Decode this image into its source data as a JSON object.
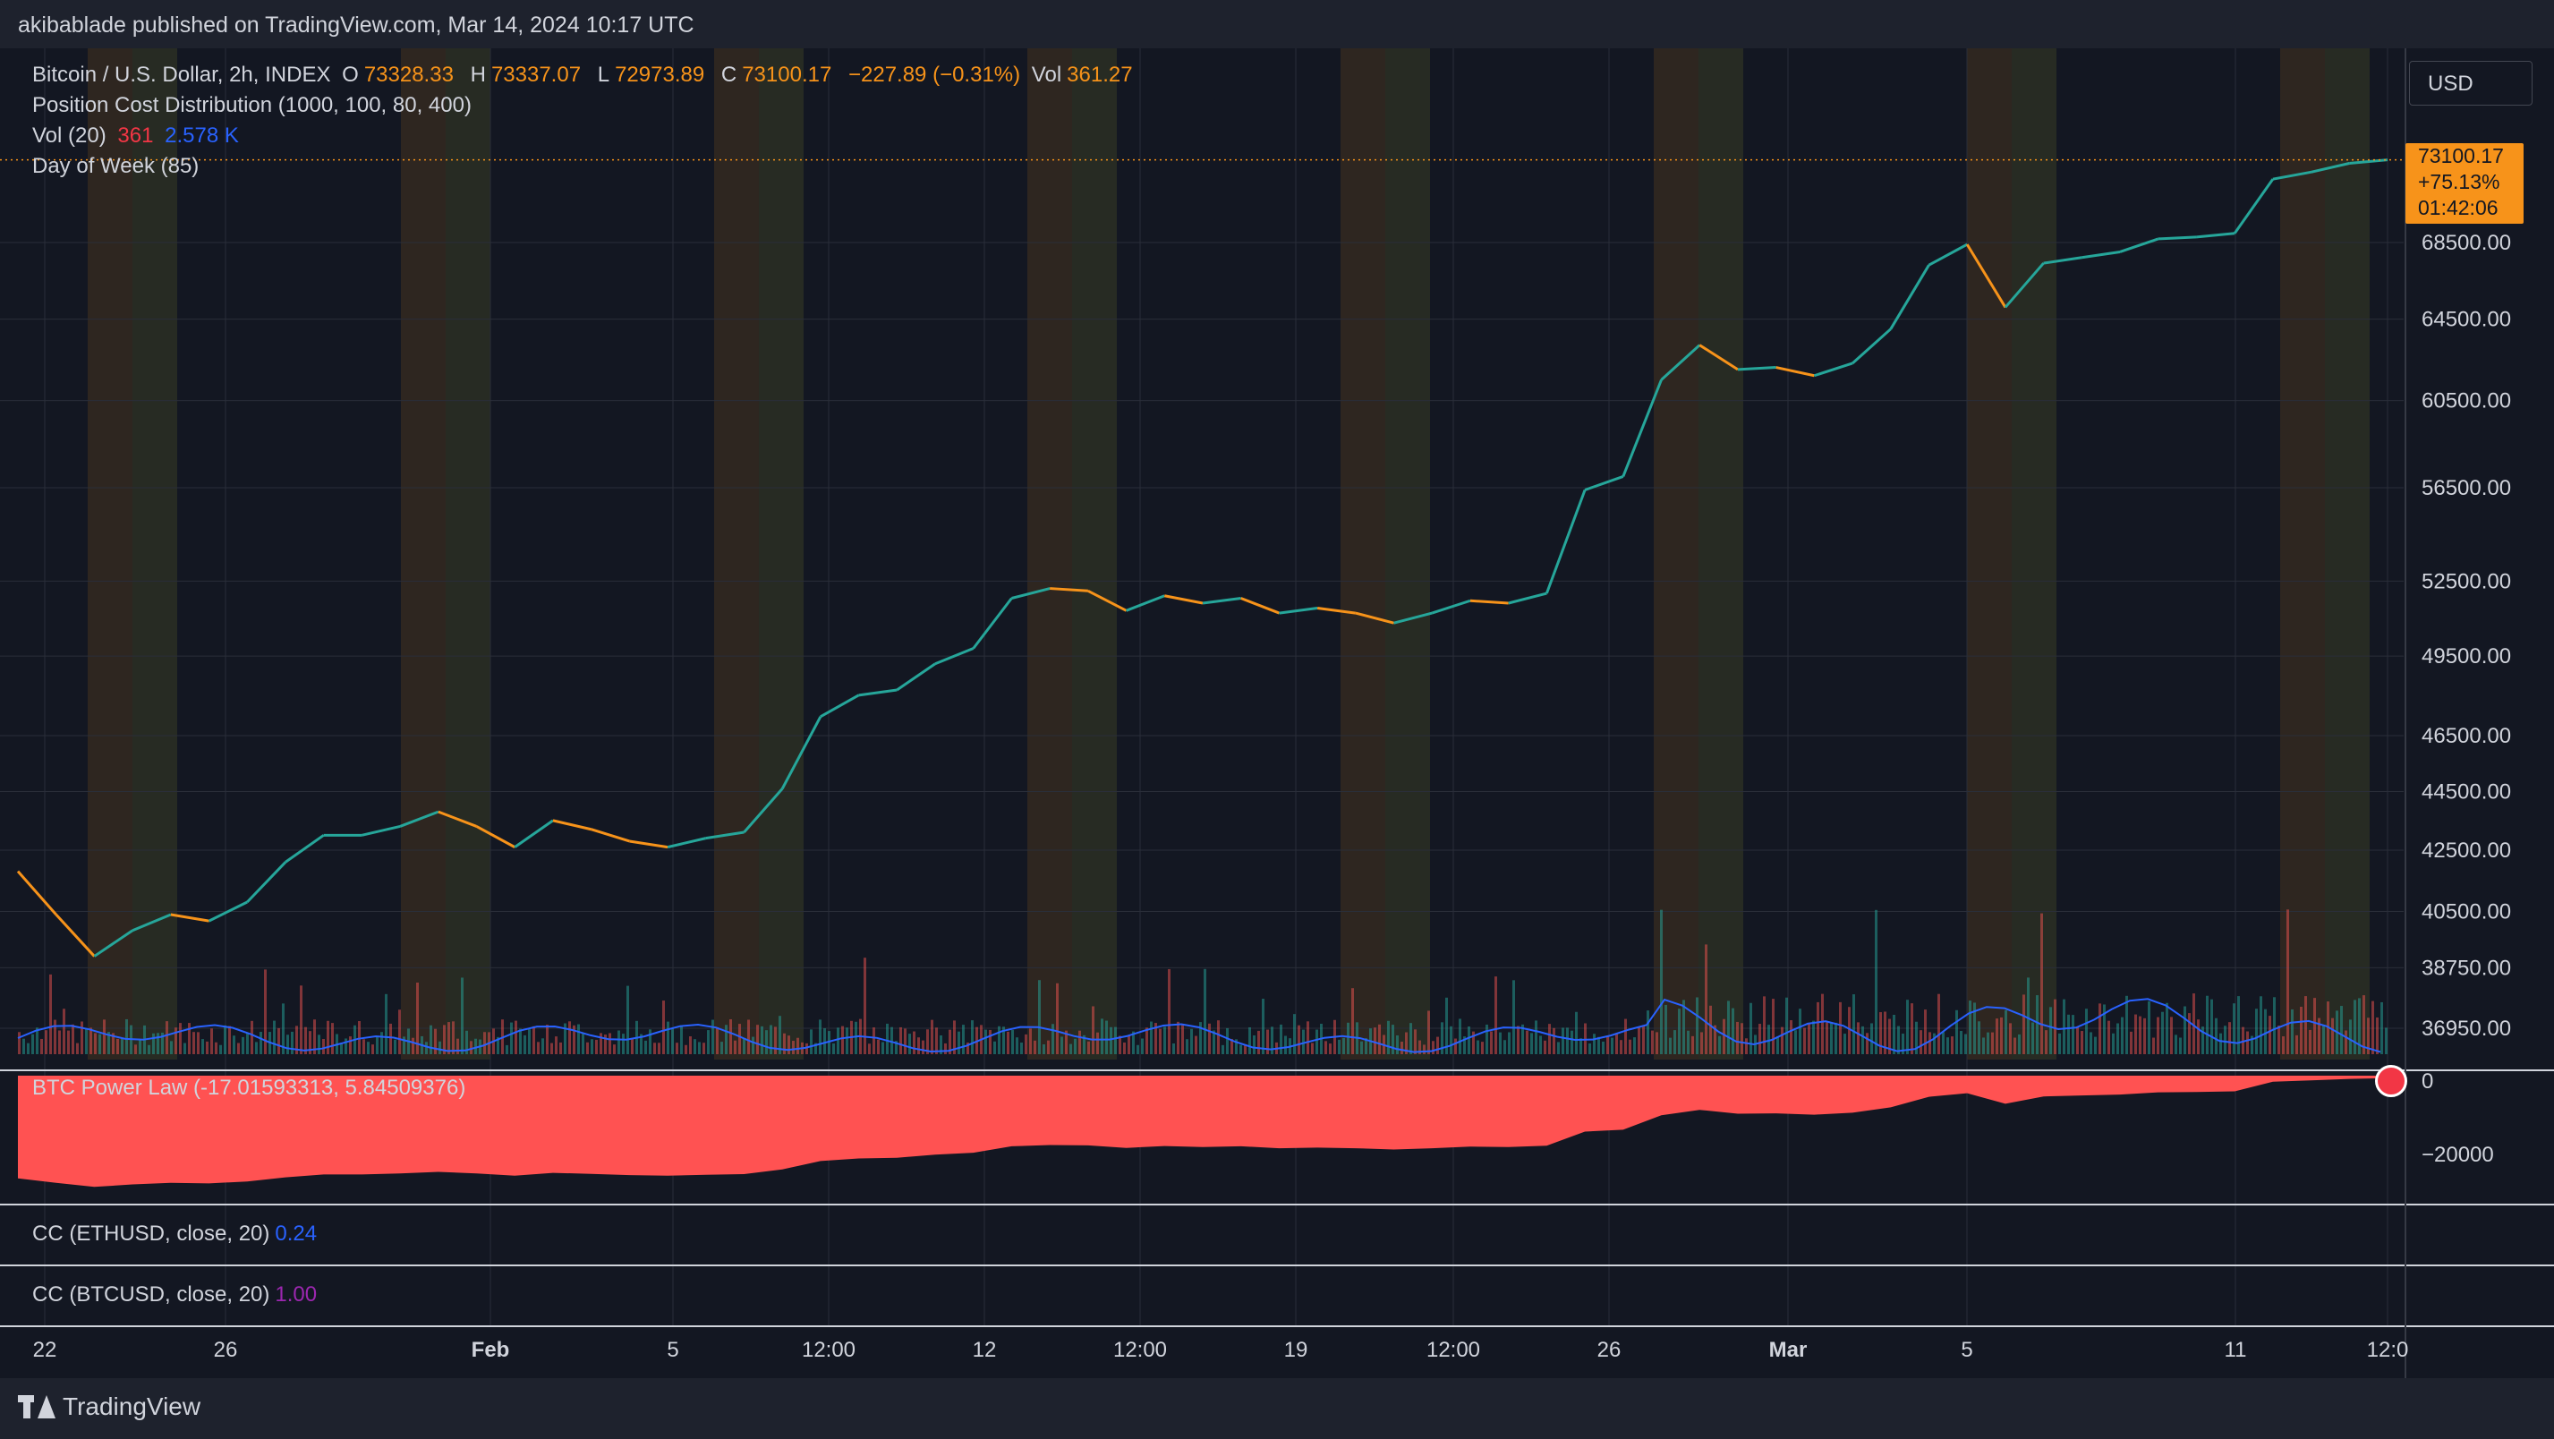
{
  "header": {
    "published_text": "akibablade published on TradingView.com, Mar 14, 2024 10:17 UTC"
  },
  "main_legend": {
    "symbol": "Bitcoin / U.S. Dollar, 2h, INDEX",
    "open_label": "O",
    "open": "73328.33",
    "high_label": "H",
    "high": "73337.07",
    "low_label": "L",
    "low": "72973.89",
    "close_label": "C",
    "close": "73100.17",
    "change": "−227.89 (−0.31%)",
    "vol_label": "Vol",
    "vol": "361.27"
  },
  "indicators": {
    "position_cost": "Position Cost Distribution (1000, 100, 80, 400)",
    "vol_name": "Vol (20)",
    "vol_value": "361",
    "vol_ma": "2.578 K",
    "day_of_week": "Day of Week (85)"
  },
  "currency_button": "USD",
  "last_price": {
    "price": "73100.17",
    "change_pct": "+75.13%",
    "countdown": "01:42:06"
  },
  "price_axis": [
    "68500.00",
    "64500.00",
    "60500.00",
    "56500.00",
    "52500.00",
    "49500.00",
    "46500.00",
    "44500.00",
    "42500.00",
    "40500.00",
    "38750.00",
    "36950.00"
  ],
  "power_law_pane": {
    "title": "BTC Power Law (-17.01593313, 5.84509376)",
    "axis": [
      "0",
      "−20000"
    ]
  },
  "cc_eth": {
    "title": "CC (ETHUSD, close, 20)",
    "value": "0.24"
  },
  "cc_btc": {
    "title": "CC (BTCUSD, close, 20)",
    "value": "1.00"
  },
  "time_axis": [
    "22",
    "26",
    "Feb",
    "5",
    "12:00",
    "12",
    "12:00",
    "19",
    "12:00",
    "26",
    "Mar",
    "5",
    "11",
    "12:0"
  ],
  "footer": {
    "logo_text": "TradingView"
  },
  "colors": {
    "up": "#26a69a",
    "down": "#f7931a",
    "volume_ma": "#2962ff",
    "power_law": "#ff5252",
    "background": "#131722"
  },
  "chart_data": {
    "type": "line",
    "series": [
      {
        "values": [
          41800,
          40400,
          39100,
          39900,
          40400,
          40200,
          40800,
          42100,
          43000,
          43000,
          43300,
          43800,
          43300,
          42600,
          43500,
          43200,
          42800,
          42600,
          42900,
          43100,
          44600,
          47200,
          48000,
          48200,
          49200,
          49800,
          51800,
          52200,
          52100,
          51300,
          51900,
          51600,
          51800,
          51200,
          51400,
          51200,
          50800,
          51200,
          51700,
          51600,
          52000,
          56400,
          57000,
          61500,
          63200,
          62000,
          62100,
          61700,
          62300,
          64000,
          67300,
          68400,
          65100,
          67400,
          67700,
          68000,
          68700,
          68800,
          69000,
          72000,
          72400,
          72900,
          73100
        ]
      }
    ],
    "ylim": [
      36950,
      73337
    ]
  }
}
